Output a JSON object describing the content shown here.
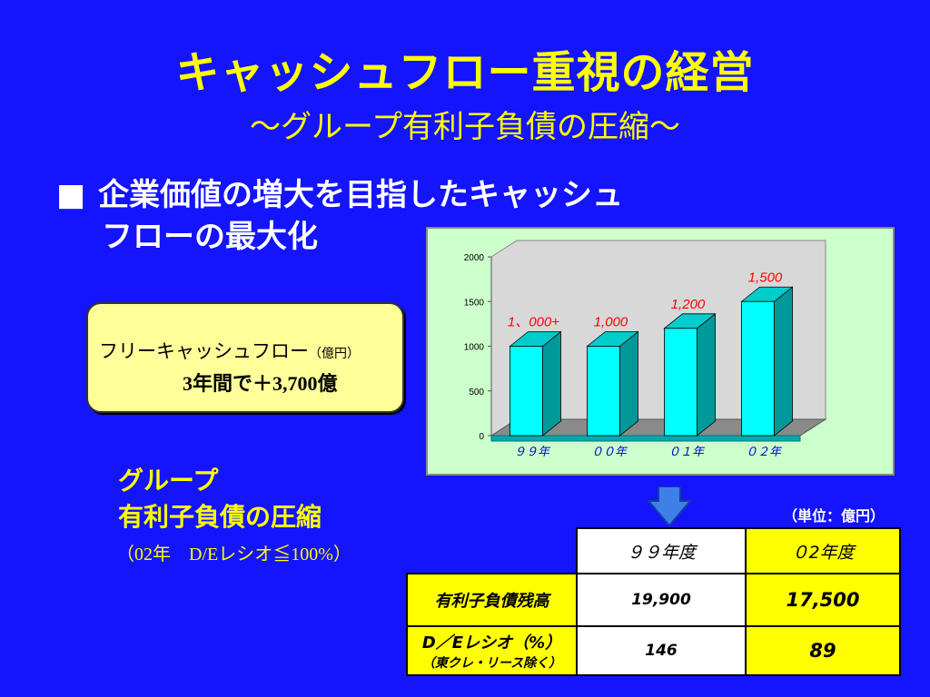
{
  "title": "キャッシュフロー重視の経営",
  "subtitle": "～グループ有利子負債の圧縮～",
  "bullet": {
    "marker": "■",
    "line1": "企業価値の増大を目指したキャッシュ",
    "line2": "フローの最大化"
  },
  "fcf_box": {
    "label": "フリーキャッシュフロー",
    "unit": "（億円）",
    "value_text": "3年間で＋3,700億"
  },
  "group_heading": {
    "line1": "グループ",
    "line2": "有利子負債の圧縮",
    "note": "（02年　D/Eレシオ≦100%）"
  },
  "unit_note": "（単位：億円）",
  "table": {
    "headers": [
      "９９年度",
      "０2年度"
    ],
    "rows": [
      {
        "label": "有利子負債残高",
        "sublabel": "",
        "values": [
          "19,900",
          "17,500"
        ]
      },
      {
        "label": "D／Eレシオ（%）",
        "sublabel": "（東クレ・リース除く）",
        "values": [
          "146",
          "89"
        ]
      }
    ]
  },
  "colors": {
    "background": "#1414ff",
    "title": "#ffff00",
    "bar_front": "#00ffff",
    "bar_side": "#009999",
    "chart_bg": "#ccffcc",
    "label_red": "#ff0000"
  },
  "chart_data": {
    "type": "bar",
    "categories": [
      "９９年",
      "００年",
      "０１年",
      "０２年"
    ],
    "values": [
      1000,
      1000,
      1200,
      1500
    ],
    "data_labels": [
      "1、000+",
      "1,000",
      "1,200",
      "1,500"
    ],
    "yticks": [
      "0",
      "500",
      "1000",
      "1500",
      "2000"
    ],
    "ylim": [
      0,
      2000
    ],
    "title": "",
    "xlabel": "",
    "ylabel": "",
    "grid": false,
    "style": "3d-column"
  }
}
